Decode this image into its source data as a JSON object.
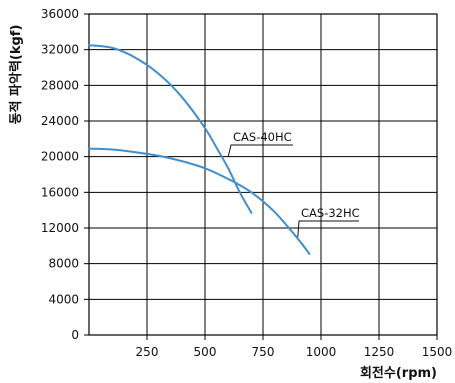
{
  "chart_data": {
    "type": "line",
    "title": "",
    "xlabel": "회전수(rpm)",
    "ylabel": "동적 파악력(kgf)",
    "xlim": [
      0,
      1500
    ],
    "ylim": [
      0,
      36000
    ],
    "x_ticks": [
      250,
      500,
      750,
      1000,
      1250,
      1500
    ],
    "y_ticks": [
      0,
      4000,
      8000,
      12000,
      16000,
      20000,
      24000,
      28000,
      32000,
      36000
    ],
    "grid": true,
    "colors": {
      "line": "#3f8fd0",
      "grid": "#000000",
      "axis": "#000000"
    },
    "series": [
      {
        "name": "CAS-40HC",
        "x": [
          0,
          100,
          200,
          300,
          400,
          500,
          550,
          600,
          650,
          700
        ],
        "y": [
          32500,
          32200,
          31100,
          29300,
          26700,
          23200,
          21000,
          18700,
          16000,
          13700
        ]
      },
      {
        "name": "CAS-32HC",
        "x": [
          0,
          100,
          200,
          300,
          400,
          500,
          600,
          700,
          800,
          900,
          950
        ],
        "y": [
          20900,
          20800,
          20500,
          20100,
          19500,
          18700,
          17500,
          16000,
          13800,
          10800,
          9100
        ]
      }
    ],
    "annotations": [
      {
        "text": "CAS-40HC",
        "series": "CAS-40HC"
      },
      {
        "text": "CAS-32HC",
        "series": "CAS-32HC"
      }
    ]
  }
}
